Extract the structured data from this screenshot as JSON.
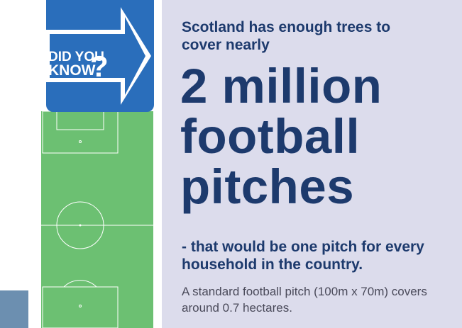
{
  "badge": {
    "line1": "DID YOU",
    "line2": "KNOW",
    "mark": "?"
  },
  "intro": "Scotland has enough trees to cover nearly",
  "headline": [
    "2 million",
    "football",
    "pitches"
  ],
  "follow_up": "- that would be one pitch for every household in the country.",
  "note": "A standard football pitch (100m x 70m) covers around 0.7 hectares."
}
